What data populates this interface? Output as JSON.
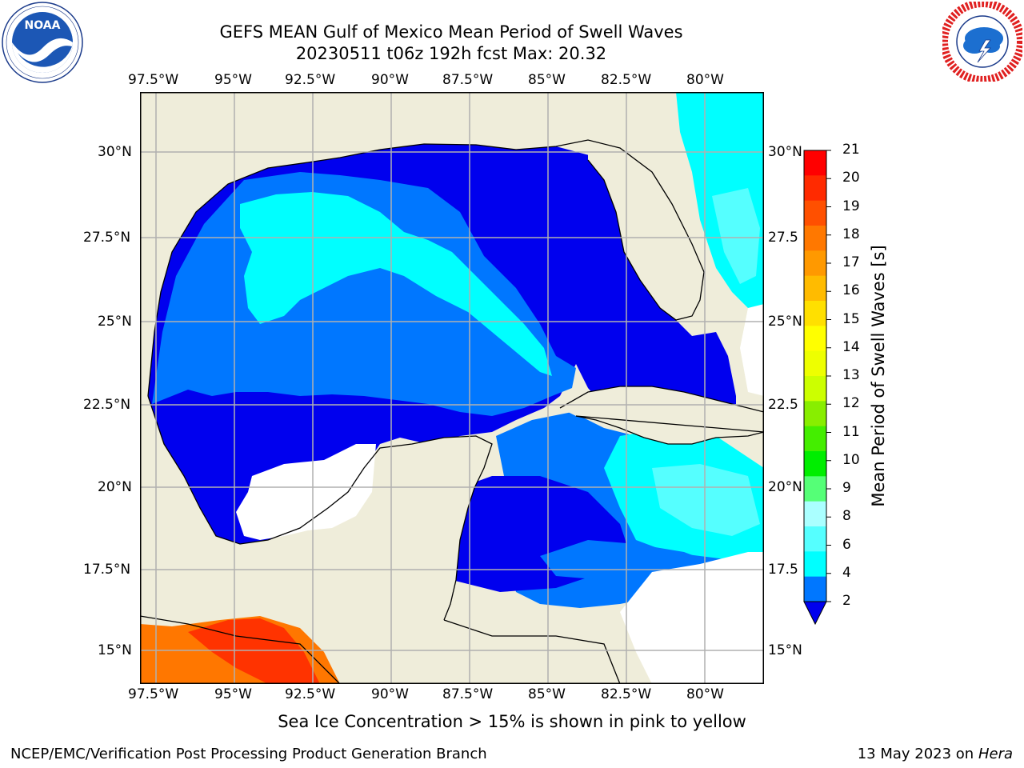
{
  "title_line1": "GEFS MEAN Gulf of Mexico Mean Period of Swell Waves",
  "title_line2": "20230511 t06z 192h fcst   Max: 20.32",
  "logos": {
    "left": {
      "name": "noaa-logo",
      "text": "NOAA",
      "ring_text": "NATIONAL OCEANIC AND ATMOSPHERIC ADMINISTRATION U.S. DEPARTMENT OF COMMERCE"
    },
    "right": {
      "name": "nws-logo",
      "ring_text": "NATIONAL WEATHER SERVICE"
    }
  },
  "map": {
    "lon_labels": [
      "97.5°W",
      "95°W",
      "92.5°W",
      "90°W",
      "87.5°W",
      "85°W",
      "82.5°W",
      "80°W"
    ],
    "lat_labels_left": [
      "30°N",
      "27.5°N",
      "25°N",
      "22.5°N",
      "20°N",
      "17.5°N",
      "15°N"
    ],
    "lat_labels_right": [
      "30°N",
      "27.5",
      "25°N",
      "22.5",
      "20°N",
      "17.5",
      "15°N"
    ],
    "colors": {
      "land": "#efedda",
      "ocean_deep": "#0000ee",
      "ocean_mid": "#0077ff",
      "ocean_cyan": "#00ffff",
      "ocean_light": "#55ffff",
      "red": "#ff3300",
      "orange": "#ff7700",
      "grid": "#b0b0b0"
    }
  },
  "colorbar": {
    "label": "Mean Period of Swell Waves [s]",
    "ticks": [
      "21",
      "20",
      "19",
      "18",
      "17",
      "16",
      "15",
      "14",
      "13",
      "12",
      "11",
      "10",
      "9",
      "8",
      "6",
      "4",
      "2"
    ],
    "colors_top_to_bottom": [
      "#ff0000",
      "#ff2a00",
      "#ff5000",
      "#ff7800",
      "#ff9900",
      "#ffbb00",
      "#ffe000",
      "#ffff00",
      "#eeff00",
      "#ccff00",
      "#88ee00",
      "#44ee00",
      "#00ee00",
      "#55ff77",
      "#aaffff",
      "#55ffff",
      "#00ffff",
      "#0077ff"
    ],
    "extend_color": "#0000ee"
  },
  "subtitle": "Sea Ice Concentration > 15% is shown in pink to yellow",
  "footer_left": "NCEP/EMC/Verification Post Processing Product Generation Branch",
  "footer_right_date": "13 May 2023 on",
  "footer_right_host": "Hera"
}
